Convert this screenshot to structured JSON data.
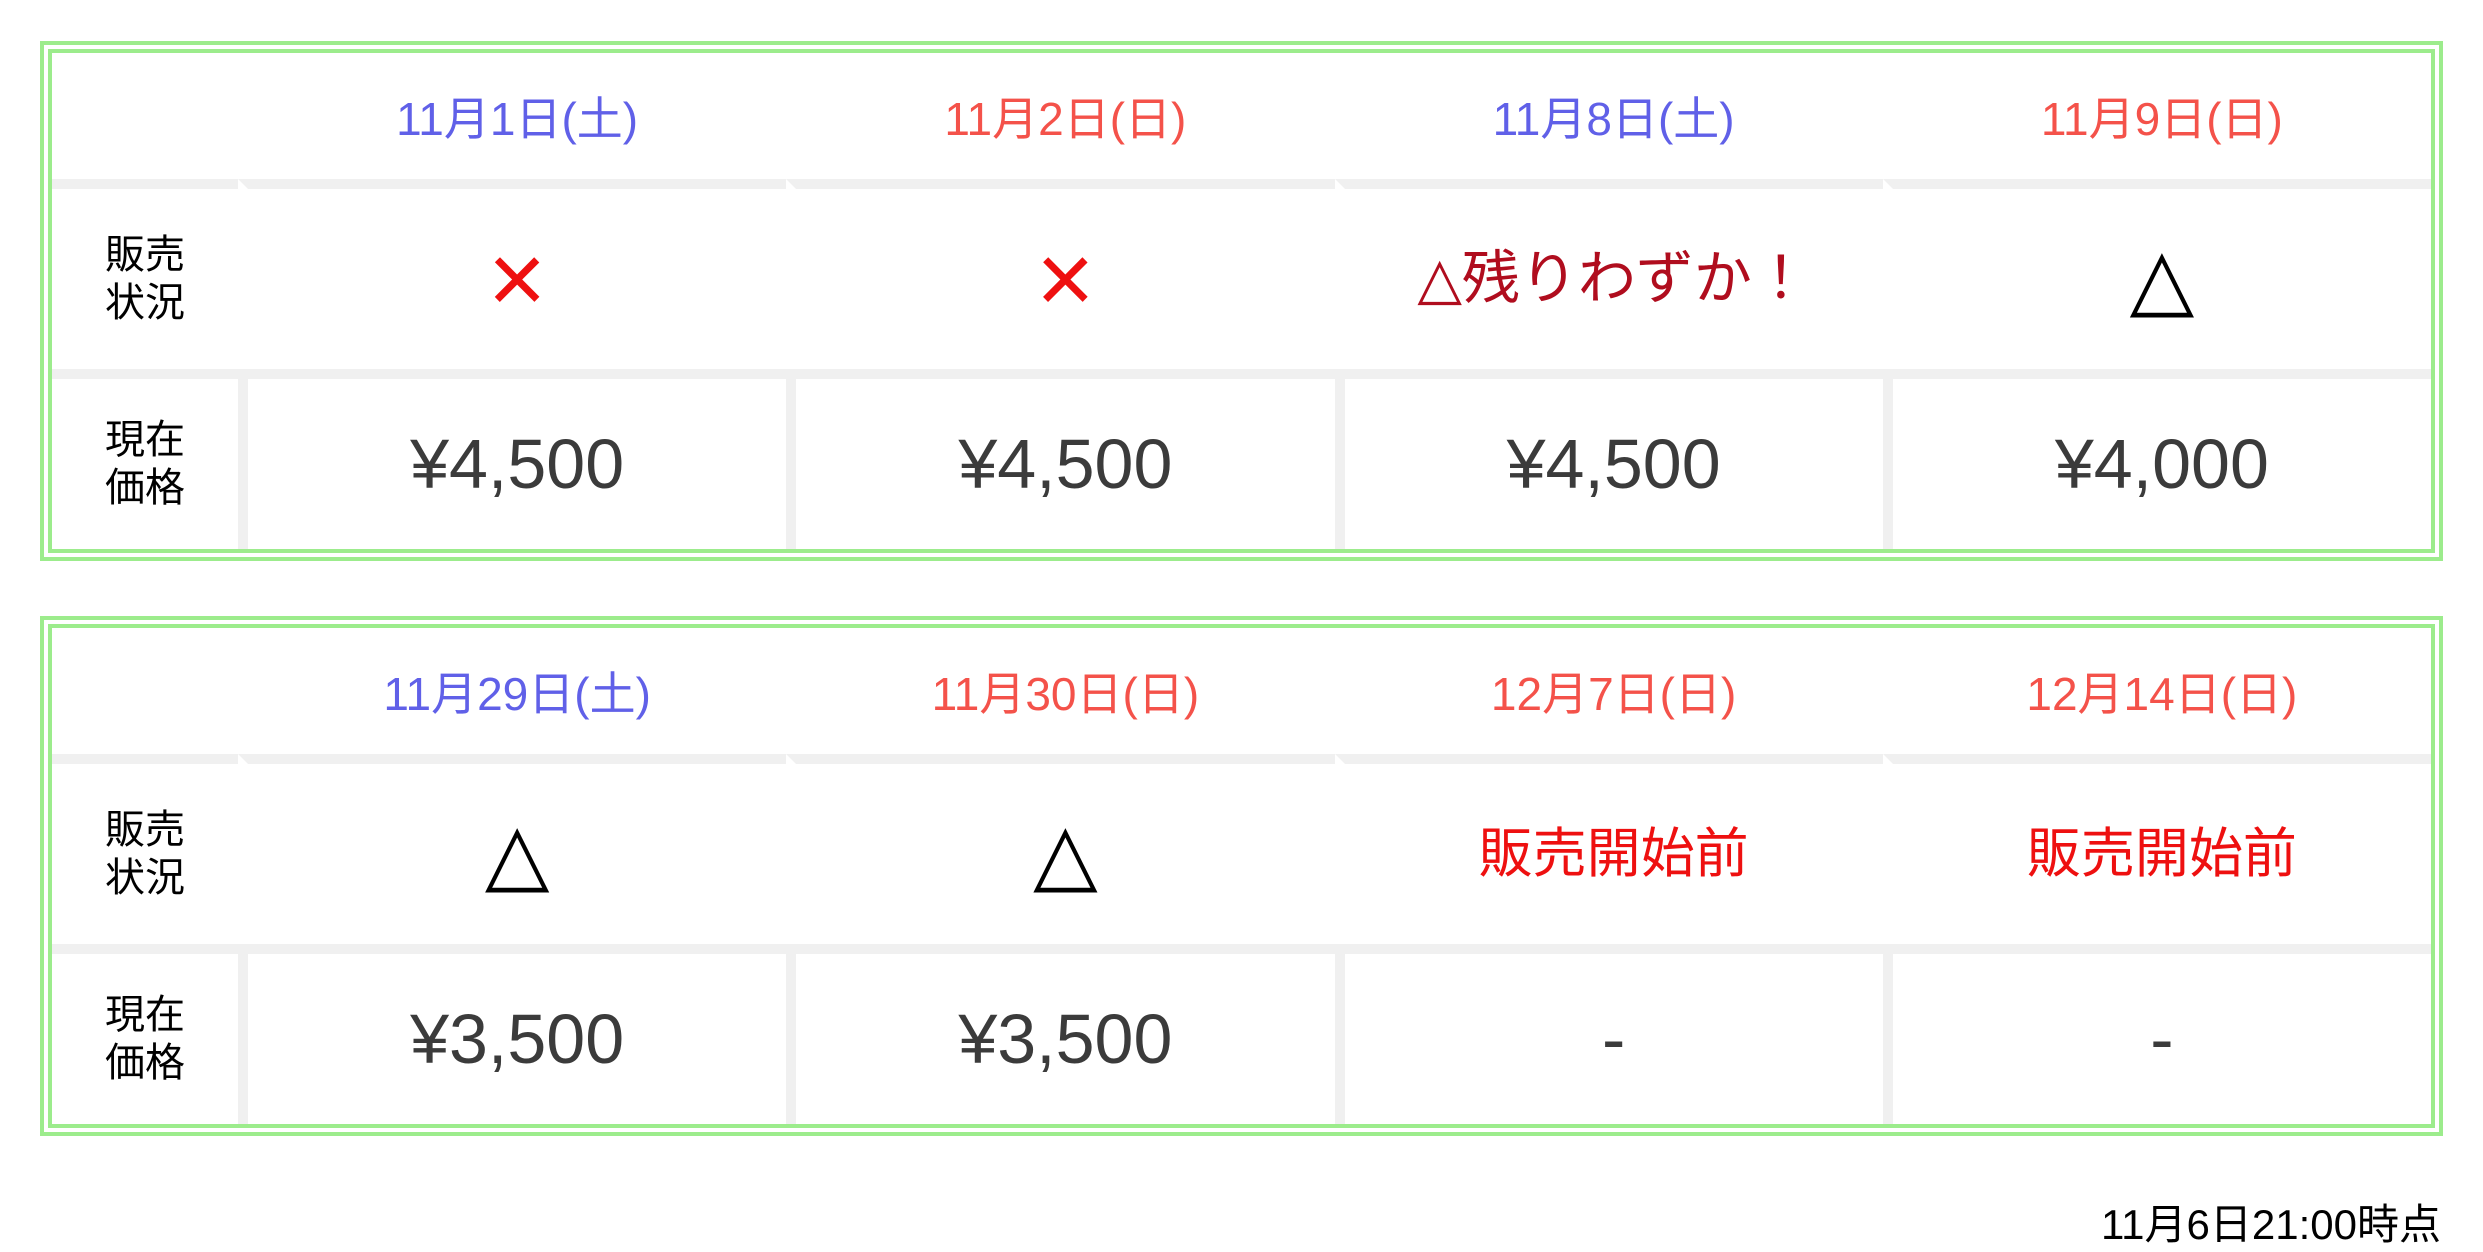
{
  "page": {
    "footer_note": "11月6日21:00時点"
  },
  "row_labels": {
    "status": "販売\n状況",
    "status_line1": "販売",
    "status_line2": "状況",
    "price_line1": "現在",
    "price_line2": "価格"
  },
  "colors": {
    "border_green": "#9cec8c",
    "saturday_blue": "#6060e8",
    "sunday_red": "#f4524a",
    "status_bright_red": "#ee1010",
    "status_dark_red": "#b00d1e",
    "bg_sold_out_gray": "#e6e6e6",
    "bg_few_left_pink": "#fad1cf",
    "bg_available_yellow": "#fce3af",
    "bg_pre_sale_gray": "#e6e6e6",
    "row_separator_gray": "#f0f0f0",
    "price_text_gray": "#3b3b3b"
  },
  "tables": [
    {
      "columns": [
        {
          "date": "11月1日(土)",
          "day": "saturday",
          "status": {
            "text": "×",
            "state": "sold-out"
          },
          "price": "¥4,500"
        },
        {
          "date": "11月2日(日)",
          "day": "sunday",
          "status": {
            "text": "×",
            "state": "sold-out"
          },
          "price": "¥4,500"
        },
        {
          "date": "11月8日(土)",
          "day": "saturday",
          "status": {
            "text": "△残りわずか！",
            "state": "few-left"
          },
          "price": "¥4,500"
        },
        {
          "date": "11月9日(日)",
          "day": "sunday",
          "status": {
            "text": "△",
            "state": "available"
          },
          "price": "¥4,000"
        }
      ]
    },
    {
      "columns": [
        {
          "date": "11月29日(土)",
          "day": "saturday",
          "status": {
            "text": "△",
            "state": "available"
          },
          "price": "¥3,500"
        },
        {
          "date": "11月30日(日)",
          "day": "sunday",
          "status": {
            "text": "△",
            "state": "available"
          },
          "price": "¥3,500"
        },
        {
          "date": "12月7日(日)",
          "day": "sunday",
          "status": {
            "text": "販売開始前",
            "state": "pre-sale"
          },
          "price": "-"
        },
        {
          "date": "12月14日(日)",
          "day": "sunday",
          "status": {
            "text": "販売開始前",
            "state": "pre-sale"
          },
          "price": "-"
        }
      ]
    }
  ]
}
